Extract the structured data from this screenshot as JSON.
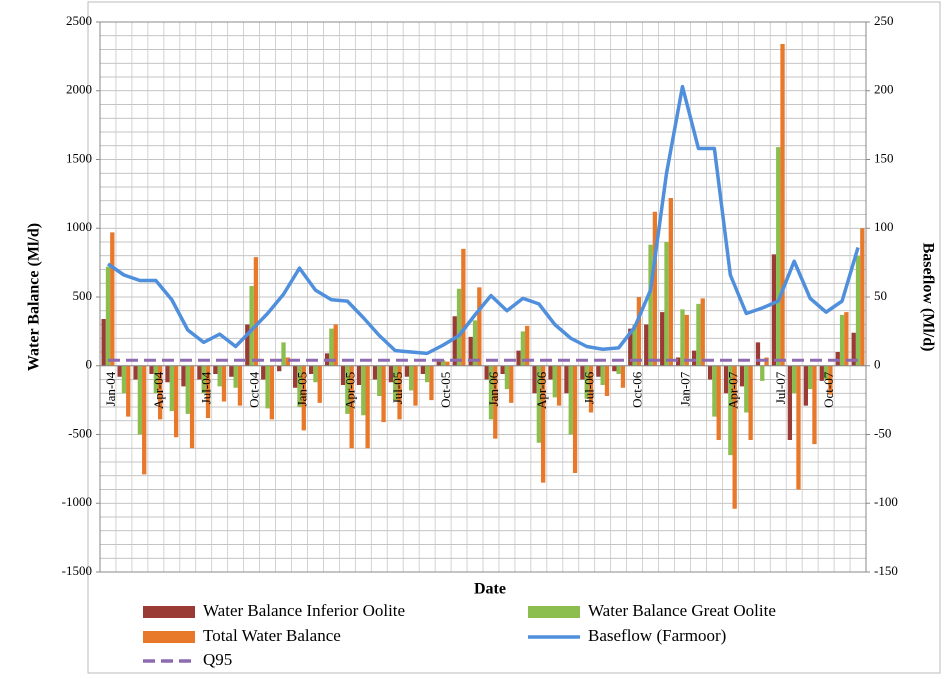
{
  "chart_data": {
    "type": "bar-line",
    "xlabel": "Date",
    "ylabel": "Water Balance (Ml/d)",
    "y2label": "Baseflow (Ml/d)",
    "categories": [
      "Jan-04",
      null,
      null,
      "Apr-04",
      null,
      null,
      "Jul-04",
      null,
      null,
      "Oct-04",
      null,
      null,
      "Jan-05",
      null,
      null,
      "Apr-05",
      null,
      null,
      "Jul-05",
      null,
      null,
      "Oct-05",
      null,
      null,
      "Jan-06",
      null,
      null,
      "Apr-06",
      null,
      null,
      "Jul-06",
      null,
      null,
      "Oct-06",
      null,
      null,
      "Jan-07",
      null,
      null,
      "Apr-07",
      null,
      null,
      "Jul-07",
      null,
      null,
      "Oct-07",
      null,
      null
    ],
    "ylim": [
      -1500,
      2500
    ],
    "yticks": [
      -1500,
      -1000,
      -500,
      0,
      500,
      1000,
      1500,
      2000,
      2500
    ],
    "ygrid": [
      -1500,
      -1400,
      -1300,
      -1200,
      -1100,
      -1000,
      -900,
      -800,
      -700,
      -600,
      -500,
      -400,
      -300,
      -200,
      -100,
      0,
      100,
      200,
      300,
      400,
      500,
      600,
      700,
      800,
      900,
      1000,
      1100,
      1200,
      1300,
      1400,
      1500,
      1600,
      1700,
      1800,
      1900,
      2000,
      2100,
      2200,
      2300,
      2400,
      2500
    ],
    "y2lim": [
      -150,
      250
    ],
    "y2ticks": [
      -150,
      -100,
      -50,
      0,
      50,
      100,
      150,
      200,
      250
    ],
    "series": [
      {
        "name": "Water Balance Inferior Oolite",
        "type": "bar",
        "color": "#9b3b36",
        "values": [
          340,
          -80,
          -100,
          -60,
          -120,
          -150,
          -100,
          -60,
          -80,
          300,
          -100,
          -40,
          -160,
          -60,
          90,
          -140,
          -140,
          -100,
          -120,
          -80,
          -60,
          30,
          360,
          210,
          -100,
          -60,
          110,
          -200,
          -100,
          -200,
          -100,
          -80,
          -40,
          270,
          300,
          390,
          60,
          110,
          -100,
          -200,
          -150,
          170,
          810,
          -540,
          -290,
          -110,
          100,
          240
        ]
      },
      {
        "name": "Water Balance Great Oolite",
        "type": "bar",
        "color": "#8cbd4f",
        "values": [
          720,
          -200,
          -500,
          -200,
          -330,
          -350,
          -200,
          -150,
          -160,
          580,
          -310,
          170,
          -300,
          -120,
          270,
          -350,
          -360,
          -220,
          -250,
          -180,
          -120,
          40,
          560,
          330,
          -390,
          -170,
          250,
          -560,
          -230,
          -500,
          -240,
          -140,
          -60,
          300,
          880,
          900,
          410,
          450,
          -370,
          -650,
          -340,
          -110,
          1590,
          -200,
          -170,
          -100,
          370,
          800
        ]
      },
      {
        "name": "Total Water Balance",
        "type": "bar",
        "color": "#e8782a",
        "values": [
          970,
          -370,
          -790,
          -390,
          -520,
          -600,
          -380,
          -260,
          -290,
          790,
          -390,
          60,
          -470,
          -270,
          300,
          -600,
          -600,
          -410,
          -390,
          -290,
          -250,
          30,
          850,
          570,
          -530,
          -270,
          290,
          -850,
          -290,
          -780,
          -340,
          -220,
          -160,
          500,
          1120,
          1220,
          370,
          490,
          -540,
          -1040,
          -540,
          60,
          2340,
          -900,
          -570,
          -210,
          390,
          1000
        ]
      },
      {
        "name": "Baseflow (Farmoor)",
        "type": "line",
        "axis": "y2",
        "color": "#4f8fdc",
        "values": [
          74,
          66,
          62,
          62,
          48,
          26,
          17,
          23,
          14,
          26,
          38,
          52,
          71,
          55,
          48,
          47,
          35,
          22,
          11,
          10,
          9,
          15,
          22,
          37,
          51,
          40,
          49,
          45,
          30,
          20,
          14,
          12,
          13,
          28,
          55,
          140,
          203,
          158,
          158,
          66,
          38,
          42,
          47,
          76,
          49,
          39,
          47,
          86
        ]
      },
      {
        "name": "Q95",
        "type": "hline",
        "axis": "y2",
        "color": "#8e6bb0",
        "value": 4
      }
    ]
  }
}
